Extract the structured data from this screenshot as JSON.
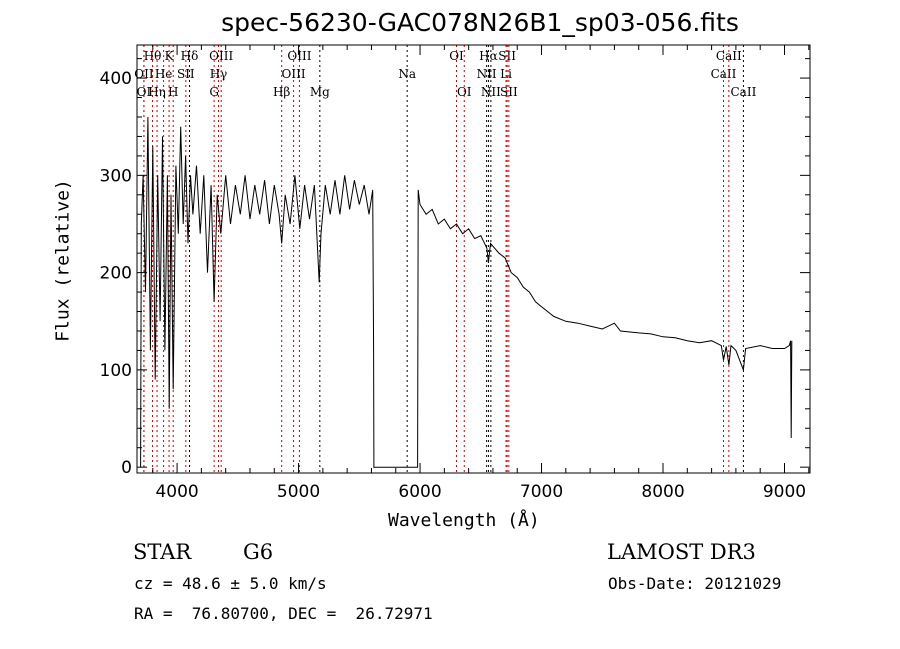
{
  "chart_data": {
    "type": "line",
    "title": "spec-56230-GAC078N26B1_sp03-056.fits",
    "xlabel": "Wavelength (Å)",
    "ylabel": "Flux (relative)",
    "xlim": [
      3670,
      9210
    ],
    "ylim": [
      -6,
      434
    ],
    "xticks": [
      4000,
      5000,
      6000,
      7000,
      8000,
      9000
    ],
    "yticks": [
      0,
      100,
      200,
      300,
      400
    ],
    "spectrum": [
      [
        3700,
        0
      ],
      [
        3705,
        250
      ],
      [
        3720,
        300
      ],
      [
        3740,
        180
      ],
      [
        3760,
        360
      ],
      [
        3780,
        120
      ],
      [
        3800,
        330
      ],
      [
        3820,
        90
      ],
      [
        3840,
        300
      ],
      [
        3860,
        150
      ],
      [
        3880,
        340
      ],
      [
        3900,
        120
      ],
      [
        3920,
        300
      ],
      [
        3935,
        60
      ],
      [
        3950,
        280
      ],
      [
        3968,
        80
      ],
      [
        3990,
        310
      ],
      [
        4010,
        240
      ],
      [
        4030,
        350
      ],
      [
        4050,
        250
      ],
      [
        4070,
        320
      ],
      [
        4090,
        230
      ],
      [
        4110,
        300
      ],
      [
        4130,
        260
      ],
      [
        4160,
        310
      ],
      [
        4190,
        240
      ],
      [
        4220,
        300
      ],
      [
        4250,
        200
      ],
      [
        4280,
        290
      ],
      [
        4305,
        170
      ],
      [
        4330,
        280
      ],
      [
        4360,
        240
      ],
      [
        4400,
        300
      ],
      [
        4440,
        250
      ],
      [
        4480,
        290
      ],
      [
        4520,
        260
      ],
      [
        4560,
        300
      ],
      [
        4600,
        255
      ],
      [
        4640,
        290
      ],
      [
        4680,
        260
      ],
      [
        4720,
        295
      ],
      [
        4760,
        250
      ],
      [
        4800,
        290
      ],
      [
        4840,
        260
      ],
      [
        4861,
        230
      ],
      [
        4890,
        280
      ],
      [
        4930,
        250
      ],
      [
        4970,
        300
      ],
      [
        5010,
        245
      ],
      [
        5050,
        290
      ],
      [
        5090,
        255
      ],
      [
        5130,
        290
      ],
      [
        5170,
        190
      ],
      [
        5185,
        240
      ],
      [
        5220,
        290
      ],
      [
        5260,
        260
      ],
      [
        5300,
        295
      ],
      [
        5340,
        260
      ],
      [
        5380,
        300
      ],
      [
        5420,
        265
      ],
      [
        5460,
        295
      ],
      [
        5500,
        270
      ],
      [
        5540,
        290
      ],
      [
        5580,
        260
      ],
      [
        5610,
        285
      ],
      [
        5618,
        120
      ],
      [
        5620,
        0
      ],
      [
        5980,
        0
      ],
      [
        5985,
        285
      ],
      [
        6000,
        270
      ],
      [
        6050,
        260
      ],
      [
        6100,
        265
      ],
      [
        6150,
        250
      ],
      [
        6200,
        255
      ],
      [
        6250,
        245
      ],
      [
        6300,
        250
      ],
      [
        6350,
        240
      ],
      [
        6400,
        245
      ],
      [
        6450,
        235
      ],
      [
        6500,
        238
      ],
      [
        6550,
        225
      ],
      [
        6563,
        210
      ],
      [
        6580,
        230
      ],
      [
        6650,
        220
      ],
      [
        6700,
        215
      ],
      [
        6750,
        200
      ],
      [
        6800,
        195
      ],
      [
        6850,
        185
      ],
      [
        6900,
        180
      ],
      [
        6950,
        170
      ],
      [
        7000,
        165
      ],
      [
        7050,
        160
      ],
      [
        7100,
        155
      ],
      [
        7200,
        150
      ],
      [
        7300,
        148
      ],
      [
        7400,
        145
      ],
      [
        7500,
        142
      ],
      [
        7600,
        148
      ],
      [
        7650,
        140
      ],
      [
        7800,
        138
      ],
      [
        7900,
        137
      ],
      [
        8000,
        134
      ],
      [
        8100,
        133
      ],
      [
        8200,
        130
      ],
      [
        8300,
        128
      ],
      [
        8400,
        130
      ],
      [
        8480,
        125
      ],
      [
        8498,
        110
      ],
      [
        8520,
        124
      ],
      [
        8542,
        105
      ],
      [
        8560,
        125
      ],
      [
        8600,
        120
      ],
      [
        8662,
        100
      ],
      [
        8680,
        122
      ],
      [
        8800,
        125
      ],
      [
        8900,
        122
      ],
      [
        9000,
        122
      ],
      [
        9040,
        125
      ],
      [
        9050,
        130
      ],
      [
        9055,
        30
      ],
      [
        9060,
        130
      ]
    ],
    "lines": [
      {
        "label": "OII",
        "w": 3727,
        "row": 2,
        "color": "#cc0000"
      },
      {
        "label": "OI",
        "w": 3727,
        "row": 3,
        "color": "#cc0000"
      },
      {
        "label": "Hθ",
        "w": 3798,
        "row": 1,
        "color": "#cc0000"
      },
      {
        "label": "Hη",
        "w": 3835,
        "row": 3,
        "color": "#cc0000"
      },
      {
        "label": "He",
        "w": 3889,
        "row": 2,
        "color": "#cc0000"
      },
      {
        "label": "K",
        "w": 3934,
        "row": 1,
        "color": "#cc0000"
      },
      {
        "label": "H",
        "w": 3968,
        "row": 3,
        "color": "#cc0000"
      },
      {
        "label": "SII",
        "w": 4072,
        "row": 2,
        "color": "#cc0000"
      },
      {
        "label": "Hδ",
        "w": 4102,
        "row": 1,
        "color": "#000000"
      },
      {
        "label": "G",
        "w": 4305,
        "row": 3,
        "color": "#cc0000"
      },
      {
        "label": "Hγ",
        "w": 4341,
        "row": 2,
        "color": "#cc0000"
      },
      {
        "label": "OIII",
        "w": 4363,
        "row": 1,
        "color": "#cc0000"
      },
      {
        "label": "Hβ",
        "w": 4861,
        "row": 3,
        "color": "#cc0000"
      },
      {
        "label": "OIII",
        "w": 4959,
        "row": 2,
        "color": "#cc0000"
      },
      {
        "label": "OIII",
        "w": 5007,
        "row": 1,
        "color": "#cc0000"
      },
      {
        "label": "Mg",
        "w": 5175,
        "row": 3,
        "color": "#000000"
      },
      {
        "label": "Na",
        "w": 5894,
        "row": 2,
        "color": "#000000"
      },
      {
        "label": "OI",
        "w": 6300,
        "row": 1,
        "color": "#cc0000"
      },
      {
        "label": "OI",
        "w": 6364,
        "row": 3,
        "color": "#cc0000"
      },
      {
        "label": "NII",
        "w": 6548,
        "row": 2,
        "color": "#000000"
      },
      {
        "label": "Hα",
        "w": 6563,
        "row": 1,
        "color": "#000000"
      },
      {
        "label": "NII",
        "w": 6583,
        "row": 3,
        "color": "#000000"
      },
      {
        "label": "Li",
        "w": 6708,
        "row": 2,
        "color": "#cc0000"
      },
      {
        "label": "SII",
        "w": 6717,
        "row": 1,
        "color": "#cc0000"
      },
      {
        "label": "SII",
        "w": 6731,
        "row": 3,
        "color": "#cc0000"
      },
      {
        "label": "CaII",
        "w": 8498,
        "row": 2,
        "color": "#cc0000"
      },
      {
        "label": "CaII",
        "w": 8542,
        "row": 1,
        "color": "#cc0000"
      },
      {
        "label": "CaII",
        "w": 8662,
        "row": 3,
        "color": "#000000"
      }
    ]
  },
  "info": {
    "class": "STAR",
    "subclass": "G6",
    "cz": "cz = 48.6 ± 5.0 km/s",
    "radec": "RA =  76.80700, DEC =  26.72971",
    "survey": "LAMOST DR3",
    "obsdate": "Obs-Date: 20121029"
  }
}
